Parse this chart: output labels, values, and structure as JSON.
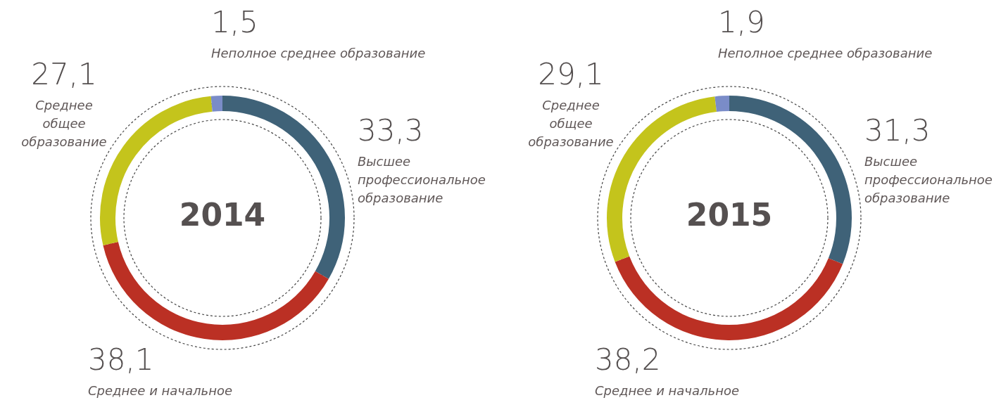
{
  "chart_data": [
    {
      "type": "donut",
      "title": "2014",
      "categories": [
        "Высшее профессиональное образование",
        "Среднее и начальное",
        "Среднее общее образование",
        "Неполное среднее образование"
      ],
      "values": [
        33.3,
        38.1,
        27.1,
        1.5
      ],
      "value_labels": [
        "33,3",
        "38,1",
        "27,1",
        "1,5"
      ],
      "colors": [
        "#3f6278",
        "#bb3024",
        "#c4c41c",
        "#7a8cc8"
      ]
    },
    {
      "type": "donut",
      "title": "2015",
      "categories": [
        "Высшее профессиональное образование",
        "Среднее и начальное",
        "Среднее общее образование",
        "Неполное среднее образование"
      ],
      "values": [
        31.3,
        38.2,
        29.1,
        1.9
      ],
      "value_labels": [
        "31,3",
        "38,2",
        "29,1",
        "1,9"
      ],
      "colors": [
        "#3f6278",
        "#bb3024",
        "#c4c41c",
        "#7a8cc8"
      ]
    }
  ]
}
